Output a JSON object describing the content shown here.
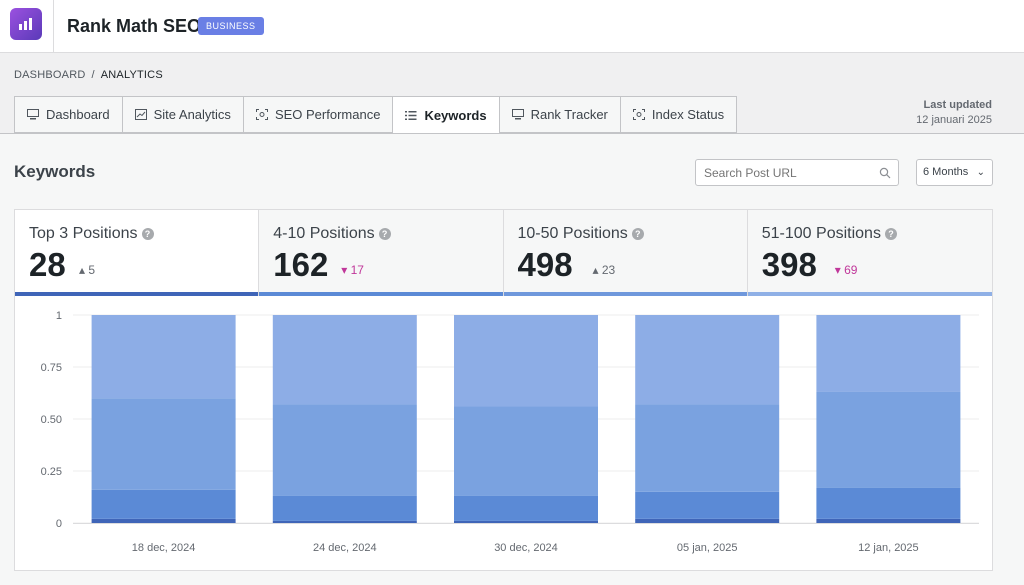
{
  "app": {
    "title": "Rank Math SEO",
    "badge": "BUSINESS"
  },
  "breadcrumb": {
    "root": "DASHBOARD",
    "sep": "/",
    "current": "ANALYTICS"
  },
  "tabs": [
    {
      "label": "Dashboard",
      "icon": "monitor-icon"
    },
    {
      "label": "Site Analytics",
      "icon": "chart-line-icon"
    },
    {
      "label": "SEO Performance",
      "icon": "focus-icon"
    },
    {
      "label": "Keywords",
      "icon": "list-icon",
      "active": true
    },
    {
      "label": "Rank Tracker",
      "icon": "monitor-icon"
    },
    {
      "label": "Index Status",
      "icon": "focus-icon"
    }
  ],
  "updated": {
    "label": "Last updated",
    "date": "12 januari 2025"
  },
  "keywords": {
    "title": "Keywords",
    "search_placeholder": "Search Post URL",
    "range": "6 Months"
  },
  "stats": [
    {
      "name": "Top 3 Positions",
      "value": "28",
      "delta": "5",
      "direction": "up",
      "bar_color": "#3f65b8"
    },
    {
      "name": "4-10 Positions",
      "value": "162",
      "delta": "17",
      "direction": "down",
      "bar_color": "#5b8ad6"
    },
    {
      "name": "10-50 Positions",
      "value": "498",
      "delta": "23",
      "direction": "up",
      "bar_color": "#6f98dc"
    },
    {
      "name": "51-100 Positions",
      "value": "398",
      "delta": "69",
      "direction": "down",
      "bar_color": "#8fb0e6"
    }
  ],
  "chart_data": {
    "type": "bar",
    "stacked": true,
    "categories": [
      "18 dec, 2024",
      "24 dec, 2024",
      "30 dec, 2024",
      "05 jan, 2025",
      "12 jan, 2025"
    ],
    "ylim": [
      0,
      1
    ],
    "yticks": [
      "0",
      "0.25",
      "0.50",
      "0.75",
      "1"
    ],
    "series": [
      {
        "values": [
          0.02,
          0.01,
          0.01,
          0.02,
          0.02
        ],
        "color": "#3f65b8"
      },
      {
        "values": [
          0.14,
          0.12,
          0.12,
          0.13,
          0.15
        ],
        "color": "#5b8ad6"
      },
      {
        "values": [
          0.44,
          0.44,
          0.43,
          0.42,
          0.46
        ],
        "color": "#7aa2e0"
      },
      {
        "values": [
          0.4,
          0.43,
          0.44,
          0.43,
          0.37
        ],
        "color": "#8dade6"
      }
    ],
    "grid": true
  }
}
